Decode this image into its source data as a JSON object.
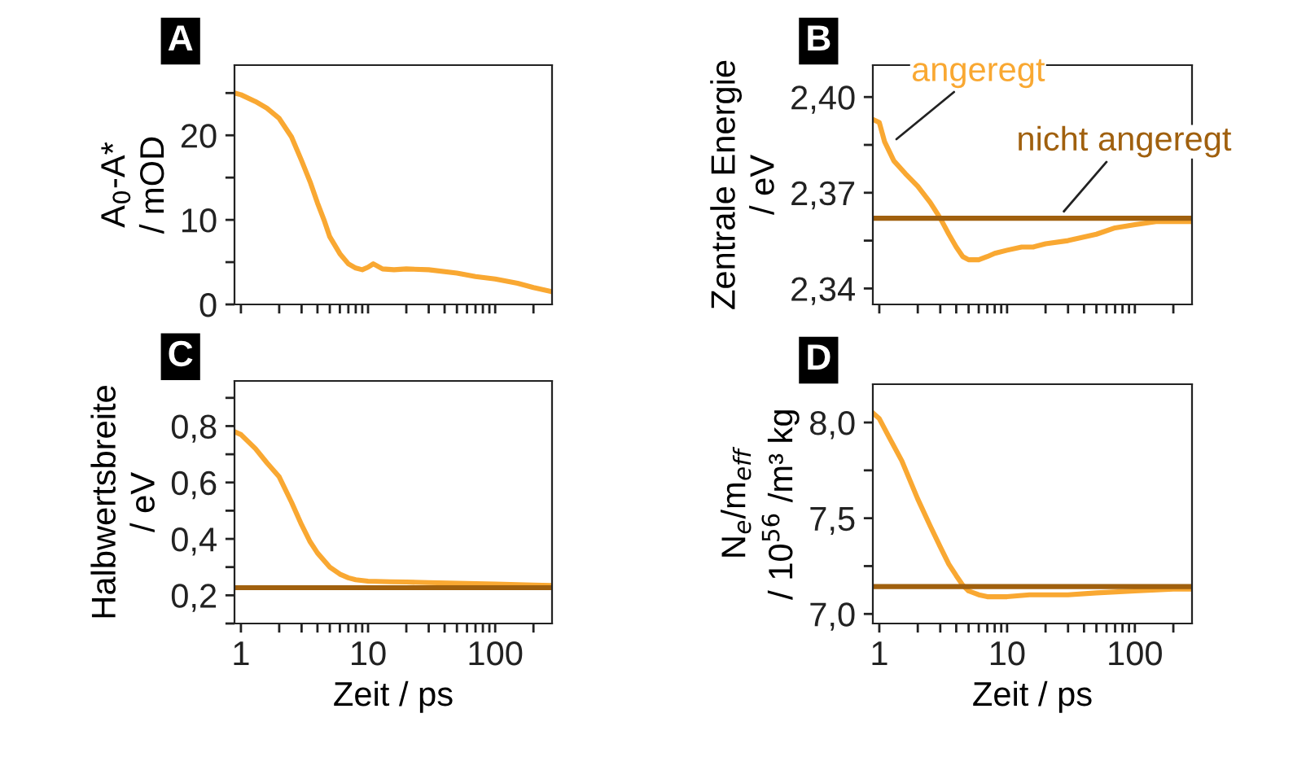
{
  "chart_data": [
    {
      "type": "line",
      "title": "A",
      "ylabel": "A$_{0}$-A*\n/ mOD",
      "log": "x",
      "tick_labels": "y",
      "grid": false,
      "legend": false,
      "xlim": [
        0.89,
        280
      ],
      "xticks": [
        1,
        {
          "value": 2,
          "label": null
        },
        {
          "value": 3,
          "label": null
        },
        {
          "value": 4,
          "label": null
        },
        {
          "value": 5,
          "label": null
        },
        {
          "value": 6,
          "label": null
        },
        {
          "value": 7,
          "label": null
        },
        {
          "value": 8,
          "label": null
        },
        {
          "value": 9,
          "label": null
        },
        10,
        {
          "value": 20,
          "label": null
        },
        {
          "value": 30,
          "label": null
        },
        {
          "value": 40,
          "label": null
        },
        {
          "value": 50,
          "label": null
        },
        {
          "value": 60,
          "label": null
        },
        {
          "value": 70,
          "label": null
        },
        {
          "value": 80,
          "label": null
        },
        {
          "value": 90,
          "label": null
        },
        100,
        {
          "value": 200,
          "label": null
        }
      ],
      "ylim": [
        0,
        28.3
      ],
      "yticks": [
        0,
        {
          "value": 5,
          "label": null
        },
        10,
        {
          "value": 15,
          "label": null
        },
        20,
        {
          "value": 25,
          "label": null
        }
      ],
      "series": [
        {
          "color": "#f9a832",
          "x": [
            0.89,
            1,
            1.3,
            1.6,
            2,
            2.5,
            3,
            3.5,
            4,
            4.5,
            5,
            6,
            7,
            8,
            9,
            10,
            11,
            13,
            16,
            20,
            30,
            50,
            70,
            100,
            150,
            200,
            280
          ],
          "values": [
            25,
            24.8,
            24,
            23.2,
            22,
            19.8,
            17,
            14.5,
            12,
            10,
            8,
            6,
            4.8,
            4.3,
            4.1,
            4.4,
            4.8,
            4.2,
            4.1,
            4.2,
            4.1,
            3.7,
            3.3,
            3,
            2.5,
            2,
            1.5
          ]
        }
      ]
    },
    {
      "type": "line",
      "title": "B",
      "ylabel": "Zentrale Energie\n/ eV",
      "log": "x",
      "tick_labels": "y",
      "grid": false,
      "legend": false,
      "xlim": [
        0.89,
        280
      ],
      "xticks": [
        1,
        {
          "value": 2,
          "label": null
        },
        {
          "value": 3,
          "label": null
        },
        {
          "value": 4,
          "label": null
        },
        {
          "value": 5,
          "label": null
        },
        {
          "value": 6,
          "label": null
        },
        {
          "value": 7,
          "label": null
        },
        {
          "value": 8,
          "label": null
        },
        {
          "value": 9,
          "label": null
        },
        10,
        {
          "value": 20,
          "label": null
        },
        {
          "value": 30,
          "label": null
        },
        {
          "value": 40,
          "label": null
        },
        {
          "value": 50,
          "label": null
        },
        {
          "value": 60,
          "label": null
        },
        {
          "value": 70,
          "label": null
        },
        {
          "value": 80,
          "label": null
        },
        {
          "value": 90,
          "label": null
        },
        100,
        {
          "value": 200,
          "label": null
        }
      ],
      "ylim": [
        2.335,
        2.41
      ],
      "yticks": [
        {
          "value": 2.34,
          "label": "2,34"
        },
        {
          "value": 2.355,
          "label": null
        },
        {
          "value": 2.37,
          "label": "2,37"
        },
        {
          "value": 2.385,
          "label": null
        },
        {
          "value": 2.4,
          "label": "2,40"
        }
      ],
      "annotations": [
        {
          "text": "angeregt",
          "x": 1.2,
          "y": 2.385
        },
        {
          "text": "nicht angeregt",
          "x": 25,
          "y": 2.362
        }
      ],
      "series": [
        {
          "color": "#f9a832",
          "x": [
            0.89,
            1,
            1.1,
            1.3,
            1.6,
            2,
            2.5,
            3,
            3.5,
            4,
            4.5,
            5,
            6,
            7,
            8,
            10,
            13,
            16,
            20,
            30,
            50,
            70,
            100,
            150,
            200,
            280
          ],
          "values": [
            2.393,
            2.392,
            2.386,
            2.38,
            2.376,
            2.372,
            2.367,
            2.362,
            2.357,
            2.353,
            2.35,
            2.349,
            2.349,
            2.35,
            2.351,
            2.352,
            2.353,
            2.353,
            2.354,
            2.355,
            2.357,
            2.359,
            2.36,
            2.361,
            2.361,
            2.361
          ]
        },
        {
          "color": "#a0600e",
          "x": [
            0.89,
            280
          ],
          "values": [
            2.362,
            2.362
          ]
        }
      ]
    },
    {
      "type": "line",
      "title": "C",
      "ylabel": "Halbwertsbreite\n/ eV",
      "xlabel": "Zeit / ps",
      "log": "x",
      "grid": false,
      "legend": false,
      "xlim": [
        0.89,
        280
      ],
      "xticks": [
        1,
        {
          "value": 2,
          "label": null
        },
        {
          "value": 3,
          "label": null
        },
        {
          "value": 4,
          "label": null
        },
        {
          "value": 5,
          "label": null
        },
        {
          "value": 6,
          "label": null
        },
        {
          "value": 7,
          "label": null
        },
        {
          "value": 8,
          "label": null
        },
        {
          "value": 9,
          "label": null
        },
        10,
        {
          "value": 20,
          "label": null
        },
        {
          "value": 30,
          "label": null
        },
        {
          "value": 40,
          "label": null
        },
        {
          "value": 50,
          "label": null
        },
        {
          "value": 60,
          "label": null
        },
        {
          "value": 70,
          "label": null
        },
        {
          "value": 80,
          "label": null
        },
        {
          "value": 90,
          "label": null
        },
        100,
        {
          "value": 200,
          "label": null
        }
      ],
      "ylim": [
        0.1,
        0.96
      ],
      "yticks": [
        {
          "value": 0.1,
          "label": null
        },
        {
          "value": 0.2,
          "label": "0,2"
        },
        {
          "value": 0.3,
          "label": null
        },
        {
          "value": 0.4,
          "label": "0,4"
        },
        {
          "value": 0.5,
          "label": null
        },
        {
          "value": 0.6,
          "label": "0,6"
        },
        {
          "value": 0.7,
          "label": null
        },
        {
          "value": 0.8,
          "label": "0,8"
        },
        {
          "value": 0.9,
          "label": null
        }
      ],
      "series": [
        {
          "color": "#f9a832",
          "x": [
            0.89,
            1,
            1.3,
            1.6,
            2,
            2.5,
            3,
            3.5,
            4,
            5,
            6,
            7,
            8,
            10,
            15,
            20,
            30,
            50,
            100,
            200,
            280
          ],
          "values": [
            0.78,
            0.77,
            0.72,
            0.67,
            0.62,
            0.53,
            0.45,
            0.39,
            0.35,
            0.3,
            0.275,
            0.262,
            0.255,
            0.25,
            0.248,
            0.247,
            0.245,
            0.243,
            0.24,
            0.236,
            0.235
          ]
        },
        {
          "color": "#a0600e",
          "x": [
            0.89,
            280
          ],
          "values": [
            0.227,
            0.227
          ]
        }
      ]
    },
    {
      "type": "line",
      "title": "D",
      "ylabel": "N$_{e}$/m$_{eff}$\n/ 10$^{56}$ /m³ kg",
      "xlabel": "Zeit / ps",
      "log": "x",
      "grid": false,
      "legend": false,
      "xlim": [
        0.89,
        280
      ],
      "xticks": [
        1,
        {
          "value": 2,
          "label": null
        },
        {
          "value": 3,
          "label": null
        },
        {
          "value": 4,
          "label": null
        },
        {
          "value": 5,
          "label": null
        },
        {
          "value": 6,
          "label": null
        },
        {
          "value": 7,
          "label": null
        },
        {
          "value": 8,
          "label": null
        },
        {
          "value": 9,
          "label": null
        },
        10,
        {
          "value": 20,
          "label": null
        },
        {
          "value": 30,
          "label": null
        },
        {
          "value": 40,
          "label": null
        },
        {
          "value": 50,
          "label": null
        },
        {
          "value": 60,
          "label": null
        },
        {
          "value": 70,
          "label": null
        },
        {
          "value": 80,
          "label": null
        },
        {
          "value": 90,
          "label": null
        },
        100,
        {
          "value": 200,
          "label": null
        }
      ],
      "ylim": [
        6.95,
        8.2
      ],
      "yticks": [
        {
          "value": 7.0,
          "label": "7,0"
        },
        {
          "value": 7.25,
          "label": null
        },
        {
          "value": 7.5,
          "label": "7,5"
        },
        {
          "value": 7.75,
          "label": null
        },
        {
          "value": 8.0,
          "label": "8,0"
        }
      ],
      "series": [
        {
          "color": "#f9a832",
          "x": [
            0.89,
            1,
            1.2,
            1.5,
            2,
            2.5,
            3,
            3.5,
            4,
            4.5,
            5,
            6,
            7,
            8,
            10,
            15,
            20,
            30,
            50,
            100,
            200,
            280
          ],
          "values": [
            8.05,
            8.02,
            7.92,
            7.8,
            7.6,
            7.46,
            7.35,
            7.26,
            7.2,
            7.15,
            7.12,
            7.1,
            7.09,
            7.09,
            7.09,
            7.1,
            7.1,
            7.1,
            7.11,
            7.12,
            7.13,
            7.13
          ]
        },
        {
          "color": "#a0600e",
          "x": [
            0.89,
            280
          ],
          "values": [
            7.143,
            7.143
          ]
        }
      ]
    }
  ]
}
